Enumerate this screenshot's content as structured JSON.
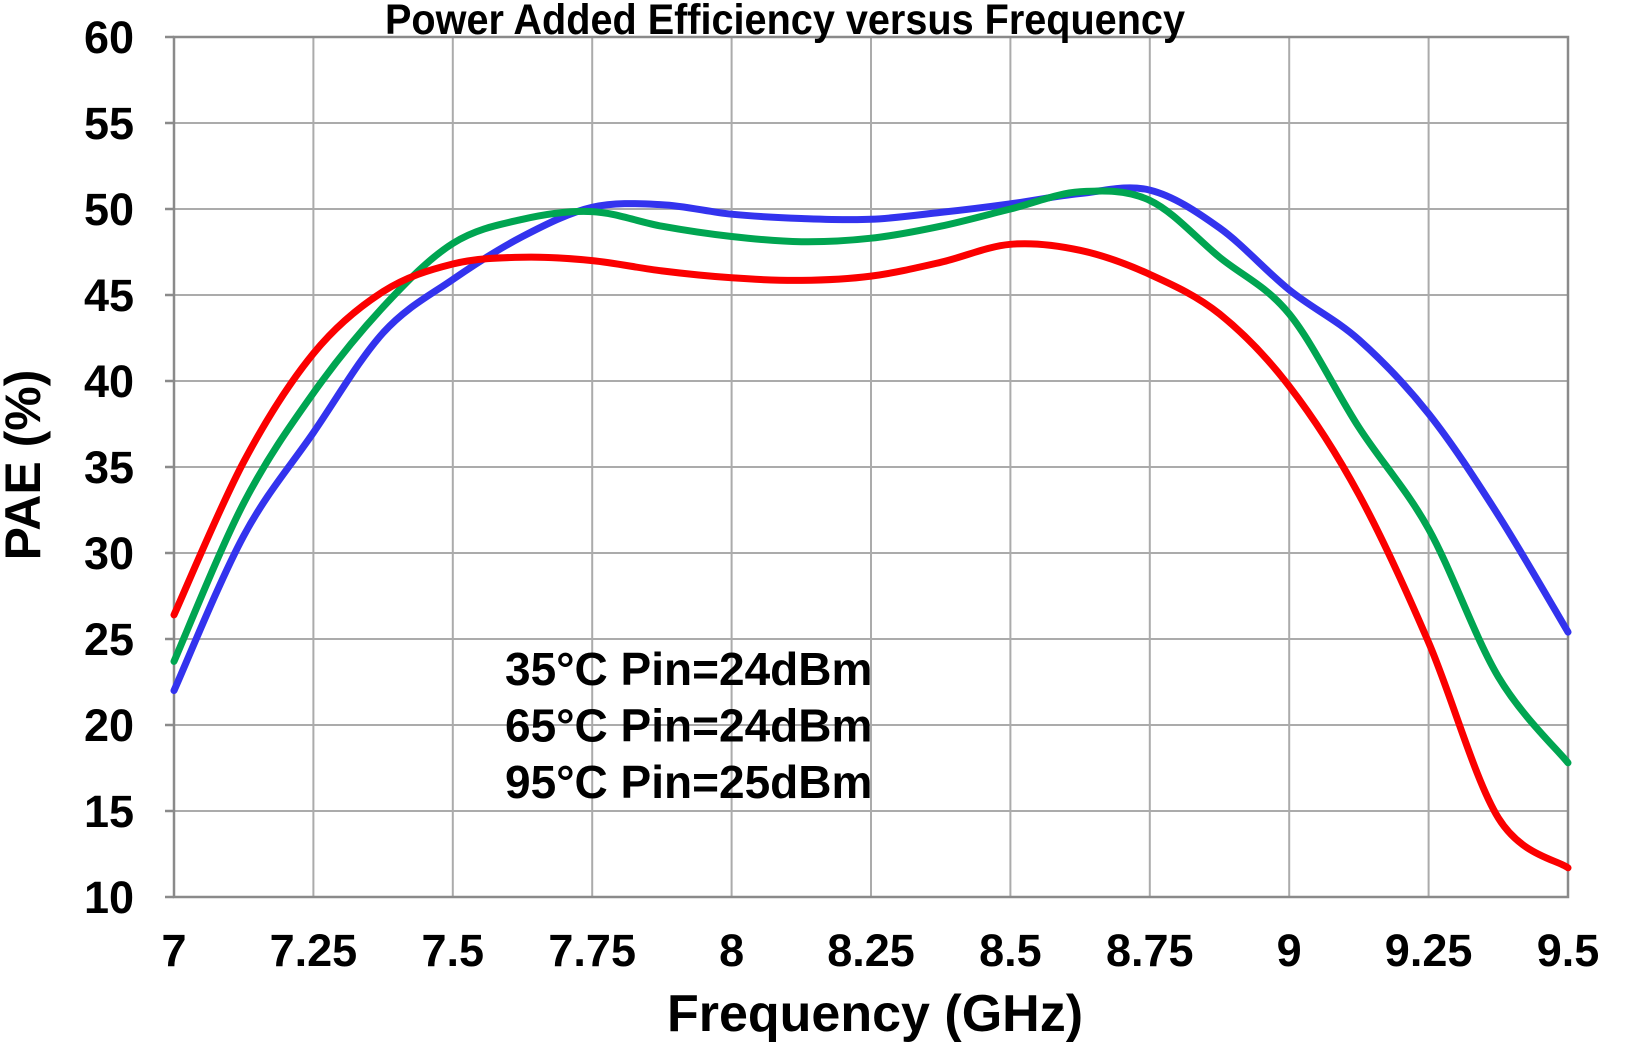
{
  "title": "Power Added Efficiency versus Frequency",
  "axes": {
    "x_label": "Frequency (GHz)",
    "y_label": "PAE (%)",
    "x_tick_labels": [
      "7",
      "7.25",
      "7.5",
      "7.75",
      "8",
      "8.25",
      "8.5",
      "8.75",
      "9",
      "9.25",
      "9.5"
    ],
    "y_tick_labels": [
      "60",
      "55",
      "50",
      "45",
      "40",
      "35",
      "30",
      "25",
      "20",
      "15",
      "10"
    ]
  },
  "colors": {
    "grid": "#ababab",
    "border": "#8a8a8a",
    "text": "#000000",
    "blue": "#3333ee",
    "green": "#00a551",
    "red": "#fb0000"
  },
  "chart_data": {
    "type": "line",
    "title": "Power Added Efficiency versus Frequency",
    "xlabel": "Frequency (GHz)",
    "ylabel": "PAE (%)",
    "xlim": [
      7,
      9.5
    ],
    "ylim": [
      10,
      60
    ],
    "x_tick_step": 0.25,
    "y_tick_step": 5,
    "grid": true,
    "legend_position": "inside lower-center",
    "x": [
      7.0,
      7.125,
      7.25,
      7.375,
      7.5,
      7.625,
      7.75,
      7.875,
      8.0,
      8.125,
      8.25,
      8.375,
      8.5,
      8.625,
      8.75,
      8.875,
      9.0,
      9.125,
      9.25,
      9.375,
      9.5
    ],
    "series": [
      {
        "name": "35°C Pin=24dBm",
        "color": "#3333ee",
        "values": [
          22.0,
          31.0,
          37.0,
          42.8,
          45.9,
          48.4,
          50.1,
          50.25,
          49.7,
          49.45,
          49.4,
          49.8,
          50.3,
          50.9,
          51.1,
          48.9,
          45.3,
          42.4,
          38.1,
          32.2,
          25.4
        ]
      },
      {
        "name": "65°C Pin=24dBm",
        "color": "#00a551",
        "values": [
          23.7,
          32.9,
          39.3,
          44.3,
          48.0,
          49.4,
          49.85,
          49.0,
          48.4,
          48.1,
          48.3,
          49.0,
          50.0,
          51.0,
          50.5,
          47.2,
          43.9,
          37.3,
          31.4,
          22.8,
          17.8
        ]
      },
      {
        "name": "95°C Pin=25dBm",
        "color": "#fb0000",
        "values": [
          26.4,
          35.3,
          41.6,
          45.2,
          46.8,
          47.2,
          47.0,
          46.4,
          46.0,
          45.85,
          46.1,
          46.9,
          47.95,
          47.6,
          46.2,
          43.9,
          39.7,
          33.4,
          24.8,
          14.6,
          11.7
        ]
      }
    ]
  }
}
